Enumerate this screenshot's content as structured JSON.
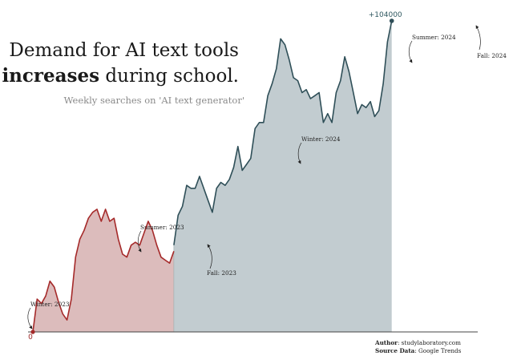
{
  "title": {
    "line1": "Demand for AI text tools",
    "line2_bold": "increases",
    "line2_rest": " during school."
  },
  "subtitle": "Weekly searches on 'AI text generator'",
  "credits": {
    "author_label": "Author",
    "author_value": ": studylaboratory.com",
    "source_label": "Source Data",
    "source_value": ": Google Trends"
  },
  "colors": {
    "segment_2023_line": "#a52a2a",
    "segment_2023_fill": "#dcbcbc",
    "segment_2024_line": "#2f4f58",
    "segment_2024_fill": "#c2ccd0",
    "axis": "#444444"
  },
  "chart_data": {
    "type": "area",
    "title": "Demand for AI text tools increases during school.",
    "subtitle": "Weekly searches on 'AI text generator'",
    "xlabel": "",
    "ylabel": "",
    "ylim": [
      0,
      104000
    ],
    "x_unit": "week index",
    "series": [
      {
        "values": [
          0,
          11000,
          9500,
          12000,
          17000,
          15000,
          10000,
          6000,
          4000,
          11000,
          25000,
          31000,
          34000,
          38000,
          40000,
          41000,
          37000,
          41000,
          37000,
          38000,
          31000,
          26000,
          25000,
          29000,
          30000,
          29000,
          33000,
          37000,
          34000,
          29000,
          25000,
          24000,
          23000,
          27000
        ]
      },
      {
        "values": [
          29000,
          39000,
          42000,
          49000,
          48000,
          48000,
          52000,
          48000,
          44000,
          40000,
          48000,
          50000,
          49000,
          51000,
          55000,
          62000,
          54000,
          56000,
          58000,
          68000,
          70000,
          70000,
          79000,
          83000,
          88000,
          98000,
          96000,
          91000,
          85000,
          84000,
          80000,
          81000,
          78000,
          79000,
          80000,
          70000,
          73000,
          70000,
          80000,
          84000,
          92000,
          87000,
          80000,
          73000,
          76000,
          75000,
          77000,
          72000,
          74000,
          83000,
          97000,
          104000
        ]
      }
    ],
    "annotations": [
      {
        "label": "Winter: 2023"
      },
      {
        "label": "Summer: 2023"
      },
      {
        "label": "Fall: 2023"
      },
      {
        "label": "Winter: 2024"
      },
      {
        "label": "Summer: 2024"
      },
      {
        "label": "Fall: 2024"
      }
    ],
    "value_labels": {
      "start": "0",
      "end": "+104000"
    }
  }
}
